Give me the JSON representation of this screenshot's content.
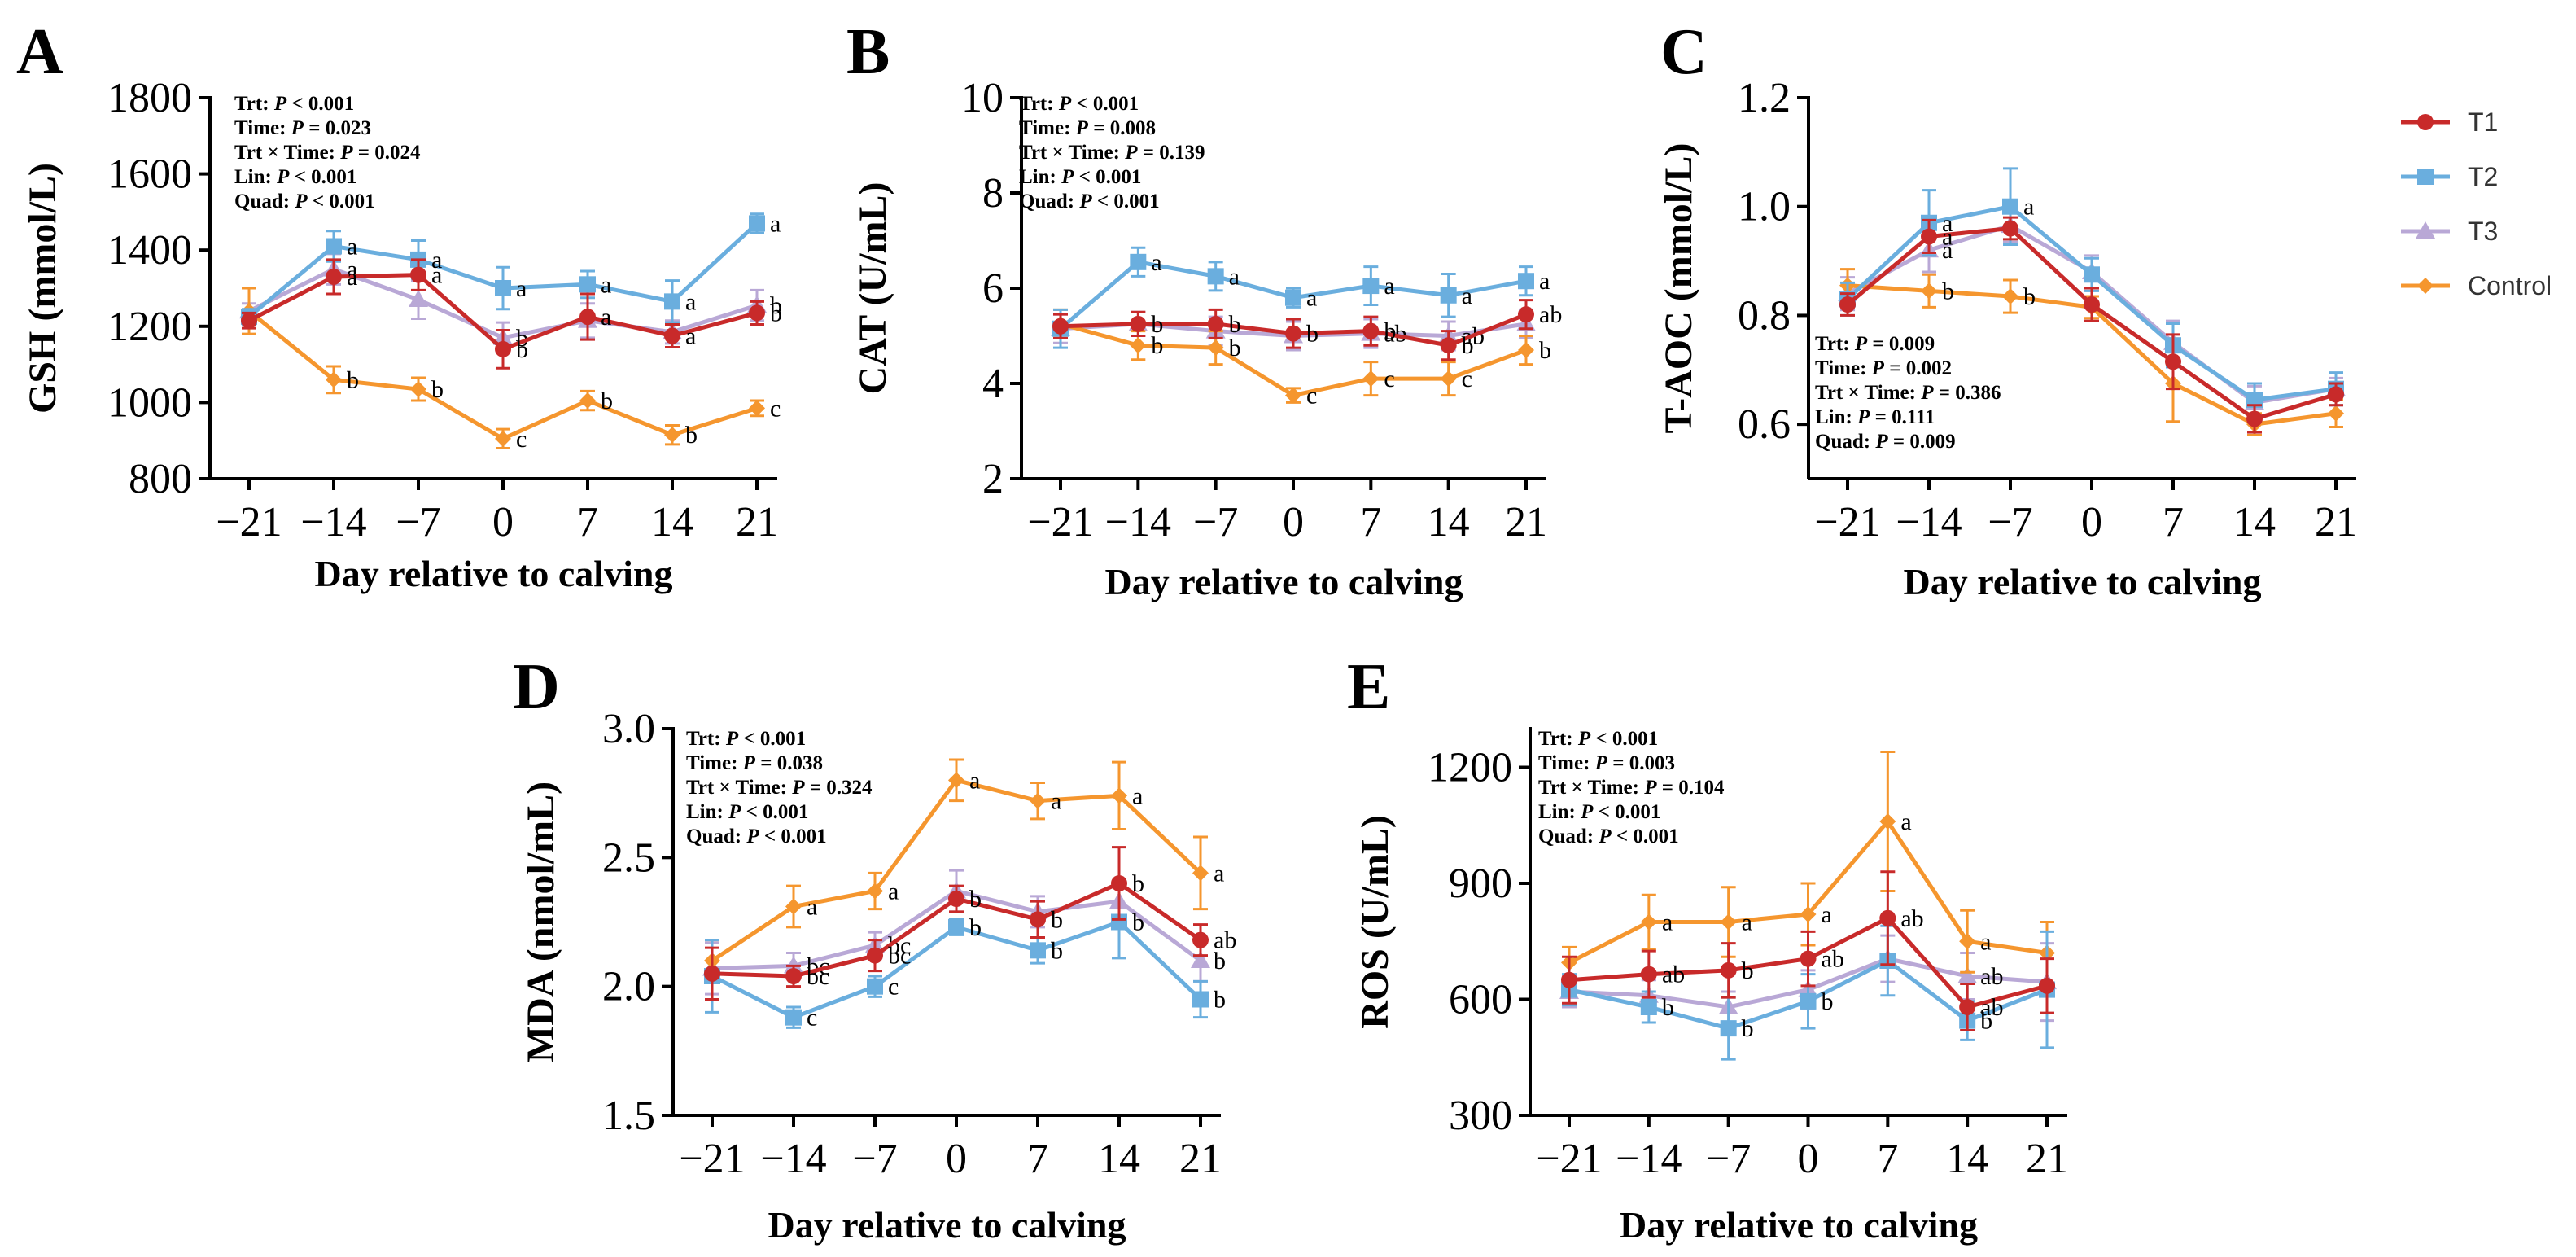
{
  "x_axis_label": "Day relative to calving",
  "legend": [
    {
      "name": "T1",
      "color": "#c82a2a",
      "marker": "circle"
    },
    {
      "name": "T2",
      "color": "#6aaede",
      "marker": "square"
    },
    {
      "name": "T3",
      "color": "#b9a8d6",
      "marker": "triangle"
    },
    {
      "name": "Control",
      "color": "#f5962e",
      "marker": "diamond"
    }
  ],
  "chart_data": [
    {
      "panel": "A",
      "type": "line",
      "ylabel": "GSH (mmol/L)",
      "xlabel": "Day relative to calving",
      "categories": [
        "−21",
        "−14",
        "−7",
        "0",
        "7",
        "14",
        "21"
      ],
      "x": [
        -21,
        -14,
        -7,
        0,
        7,
        14,
        21
      ],
      "ylim": [
        800,
        1800
      ],
      "yticks": [
        "800",
        "1000",
        "1200",
        "1400",
        "1600",
        "1800"
      ],
      "stats": [
        "Trt: P < 0.001",
        "Time: P = 0.023",
        "Trt × Time: P = 0.024",
        "Lin: P < 0.001",
        "Quad: P < 0.001"
      ],
      "series": [
        {
          "name": "T1",
          "values": [
            1215,
            1330,
            1335,
            1140,
            1225,
            1175,
            1235
          ],
          "errors": [
            20,
            45,
            40,
            50,
            60,
            30,
            30
          ],
          "labels": [
            "",
            "a",
            "a",
            "b",
            "a",
            "a",
            "b"
          ]
        },
        {
          "name": "T2",
          "values": [
            1225,
            1410,
            1375,
            1300,
            1310,
            1265,
            1470
          ],
          "errors": [
            20,
            40,
            50,
            55,
            35,
            55,
            25
          ],
          "labels": [
            "",
            "a",
            "a",
            "a",
            "a",
            "a",
            "a"
          ]
        },
        {
          "name": "T3",
          "values": [
            1240,
            1350,
            1270,
            1170,
            1215,
            1185,
            1255
          ],
          "errors": [
            20,
            40,
            50,
            40,
            45,
            30,
            40
          ],
          "labels": [
            "",
            "a",
            "",
            "b",
            "",
            "",
            "b"
          ]
        },
        {
          "name": "Control",
          "values": [
            1240,
            1060,
            1035,
            905,
            1005,
            915,
            985
          ],
          "errors": [
            60,
            35,
            30,
            25,
            25,
            25,
            20
          ],
          "labels": [
            "",
            "b",
            "b",
            "c",
            "b",
            "b",
            "c"
          ]
        }
      ]
    },
    {
      "panel": "B",
      "type": "line",
      "ylabel": "CAT (U/mL)",
      "xlabel": "Day relative to calving",
      "categories": [
        "−21",
        "−14",
        "−7",
        "0",
        "7",
        "14",
        "21"
      ],
      "x": [
        -21,
        -14,
        -7,
        0,
        7,
        14,
        21
      ],
      "ylim": [
        2,
        10
      ],
      "yticks": [
        "2",
        "4",
        "6",
        "8",
        "10"
      ],
      "stats": [
        "Trt: P < 0.001",
        "Time: P = 0.008",
        "Trt × Time: P = 0.139",
        "Lin: P < 0.001",
        "Quad: P < 0.001"
      ],
      "series": [
        {
          "name": "T1",
          "values": [
            5.2,
            5.25,
            5.25,
            5.05,
            5.1,
            4.8,
            5.45
          ],
          "errors": [
            0.25,
            0.25,
            0.3,
            0.3,
            0.3,
            0.3,
            0.3
          ],
          "labels": [
            "",
            "b",
            "b",
            "b",
            "b",
            "b",
            "ab"
          ]
        },
        {
          "name": "T2",
          "values": [
            5.15,
            6.55,
            6.25,
            5.8,
            6.05,
            5.85,
            6.15
          ],
          "errors": [
            0.4,
            0.3,
            0.3,
            0.2,
            0.4,
            0.45,
            0.3
          ],
          "labels": [
            "",
            "a",
            "a",
            "a",
            "a",
            "a",
            "a"
          ]
        },
        {
          "name": "T3",
          "values": [
            5.15,
            5.25,
            5.1,
            5.0,
            5.05,
            5.0,
            5.25
          ],
          "errors": [
            0.3,
            0.25,
            0.3,
            0.3,
            0.3,
            0.3,
            0.3
          ],
          "labels": [
            "",
            "",
            "",
            "",
            "ab",
            "ab",
            ""
          ]
        },
        {
          "name": "Control",
          "values": [
            5.25,
            4.8,
            4.75,
            3.75,
            4.1,
            4.1,
            4.7
          ],
          "errors": [
            0.3,
            0.3,
            0.35,
            0.15,
            0.35,
            0.35,
            0.3
          ],
          "labels": [
            "",
            "b",
            "b",
            "c",
            "c",
            "c",
            "b"
          ]
        }
      ]
    },
    {
      "panel": "C",
      "type": "line",
      "ylabel": "T-AOC (mmol/L)",
      "xlabel": "Day relative to calving",
      "categories": [
        "−21",
        "−14",
        "−7",
        "0",
        "7",
        "14",
        "21"
      ],
      "x": [
        -21,
        -14,
        -7,
        0,
        7,
        14,
        21
      ],
      "ylim": [
        0.5,
        1.2
      ],
      "yticks": [
        "0.6",
        "0.8",
        "1.0",
        "1.2"
      ],
      "stats": [
        "Trt: P = 0.009",
        "Time: P = 0.002",
        "Trt × Time: P = 0.386",
        "Lin: P = 0.111",
        "Quad: P = 0.009"
      ],
      "series": [
        {
          "name": "T1",
          "values": [
            0.82,
            0.945,
            0.96,
            0.82,
            0.715,
            0.61,
            0.655
          ],
          "errors": [
            0.02,
            0.03,
            0.02,
            0.03,
            0.05,
            0.025,
            0.02
          ],
          "labels": [
            "",
            "a",
            "",
            "",
            "",
            "",
            ""
          ]
        },
        {
          "name": "T2",
          "values": [
            0.83,
            0.97,
            1.0,
            0.875,
            0.745,
            0.645,
            0.665
          ],
          "errors": [
            0.03,
            0.06,
            0.07,
            0.03,
            0.04,
            0.03,
            0.03
          ],
          "labels": [
            "",
            "a",
            "a",
            "",
            "",
            "",
            ""
          ]
        },
        {
          "name": "T3",
          "values": [
            0.84,
            0.92,
            0.965,
            0.88,
            0.75,
            0.64,
            0.665
          ],
          "errors": [
            0.03,
            0.04,
            0.03,
            0.03,
            0.04,
            0.03,
            0.02
          ],
          "labels": [
            "",
            "a",
            "",
            "",
            "",
            "",
            ""
          ]
        },
        {
          "name": "Control",
          "values": [
            0.855,
            0.845,
            0.835,
            0.815,
            0.675,
            0.6,
            0.62
          ],
          "errors": [
            0.03,
            0.03,
            0.03,
            0.02,
            0.07,
            0.02,
            0.025
          ],
          "labels": [
            "",
            "b",
            "b",
            "",
            "",
            "",
            ""
          ]
        }
      ]
    },
    {
      "panel": "D",
      "type": "line",
      "ylabel": "MDA (nmol/mL)",
      "xlabel": "Day relative to calving",
      "categories": [
        "−21",
        "−14",
        "−7",
        "0",
        "7",
        "14",
        "21"
      ],
      "x": [
        -21,
        -14,
        -7,
        0,
        7,
        14,
        21
      ],
      "ylim": [
        1.5,
        3.0
      ],
      "yticks": [
        "1.5",
        "2.0",
        "2.5",
        "3.0"
      ],
      "stats": [
        "Trt: P < 0.001",
        "Time: P = 0.038",
        "Trt × Time: P = 0.324",
        "Lin: P < 0.001",
        "Quad: P < 0.001"
      ],
      "series": [
        {
          "name": "T1",
          "values": [
            2.05,
            2.04,
            2.12,
            2.34,
            2.26,
            2.4,
            2.18
          ],
          "errors": [
            0.1,
            0.04,
            0.06,
            0.05,
            0.07,
            0.14,
            0.06
          ],
          "labels": [
            "",
            "bc",
            "bc",
            "b",
            "b",
            "b",
            "ab"
          ]
        },
        {
          "name": "T2",
          "values": [
            2.04,
            1.88,
            2.0,
            2.23,
            2.14,
            2.25,
            1.95
          ],
          "errors": [
            0.14,
            0.04,
            0.04,
            0.03,
            0.05,
            0.14,
            0.07
          ],
          "labels": [
            "",
            "c",
            "c",
            "b",
            "b",
            "b",
            "b"
          ]
        },
        {
          "name": "T3",
          "values": [
            2.07,
            2.08,
            2.16,
            2.37,
            2.29,
            2.33,
            2.1
          ],
          "errors": [
            0.1,
            0.05,
            0.05,
            0.08,
            0.06,
            0.08,
            0.08
          ],
          "labels": [
            "",
            "bc",
            "bc",
            "",
            "",
            "",
            "b"
          ]
        },
        {
          "name": "Control",
          "values": [
            2.1,
            2.31,
            2.37,
            2.8,
            2.72,
            2.74,
            2.44
          ],
          "errors": [
            0.08,
            0.08,
            0.07,
            0.08,
            0.07,
            0.13,
            0.14
          ],
          "labels": [
            "",
            "a",
            "a",
            "a",
            "a",
            "a",
            "a"
          ]
        }
      ]
    },
    {
      "panel": "E",
      "type": "line",
      "ylabel": "ROS (U/mL)",
      "xlabel": "Day relative to calving",
      "categories": [
        "−21",
        "−14",
        "−7",
        "0",
        "7",
        "14",
        "21"
      ],
      "x": [
        -21,
        -14,
        -7,
        0,
        7,
        14,
        21
      ],
      "ylim": [
        300,
        1300
      ],
      "yticks": [
        "300",
        "600",
        "900",
        "1200"
      ],
      "stats": [
        "Trt: P < 0.001",
        "Time: P = 0.003",
        "Trt × Time: P = 0.104",
        "Lin: P < 0.001",
        "Quad: P < 0.001"
      ],
      "series": [
        {
          "name": "T1",
          "values": [
            650,
            665,
            675,
            705,
            810,
            580,
            635
          ],
          "errors": [
            60,
            60,
            70,
            70,
            120,
            60,
            70
          ],
          "labels": [
            "",
            "ab",
            "b",
            "ab",
            "ab",
            "ab",
            ""
          ]
        },
        {
          "name": "T2",
          "values": [
            625,
            580,
            525,
            595,
            700,
            545,
            625
          ],
          "errors": [
            40,
            40,
            80,
            70,
            90,
            50,
            150
          ],
          "labels": [
            "",
            "b",
            "b",
            "b",
            "",
            "b",
            ""
          ]
        },
        {
          "name": "T3",
          "values": [
            620,
            610,
            580,
            625,
            705,
            660,
            645
          ],
          "errors": [
            40,
            40,
            40,
            50,
            60,
            60,
            100
          ],
          "labels": [
            "",
            "",
            "",
            "",
            "",
            "ab",
            ""
          ]
        },
        {
          "name": "Control",
          "values": [
            695,
            800,
            800,
            820,
            1060,
            750,
            720
          ],
          "errors": [
            40,
            70,
            90,
            80,
            180,
            80,
            80
          ],
          "labels": [
            "",
            "a",
            "a",
            "a",
            "a",
            "a",
            ""
          ]
        }
      ]
    }
  ]
}
